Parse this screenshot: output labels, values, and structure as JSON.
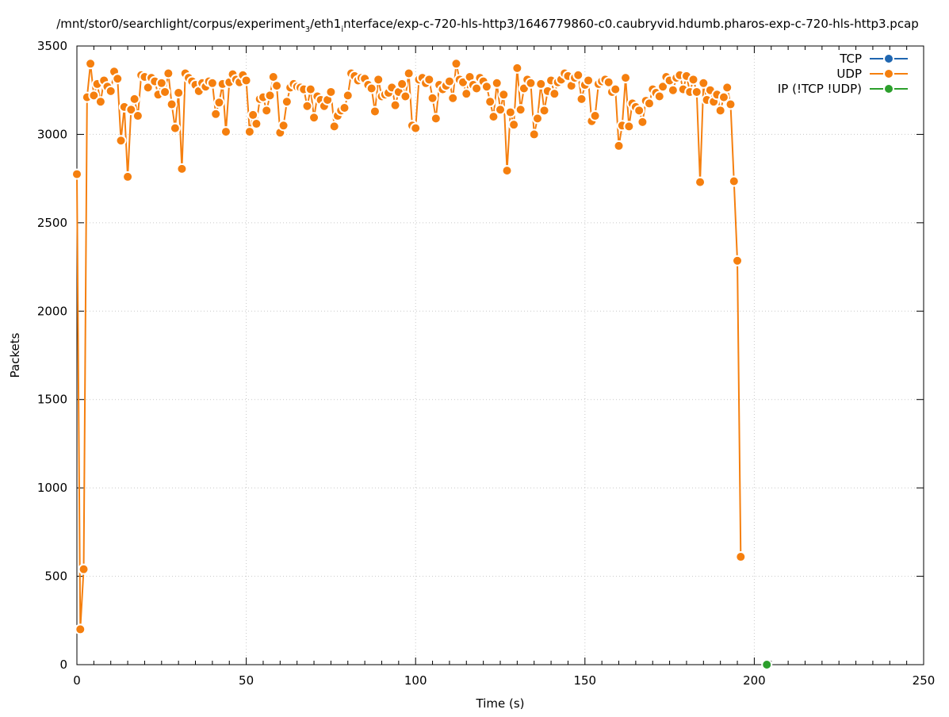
{
  "chart_data": {
    "type": "line",
    "title_prefix": "/mnt/stor0/searchlight/corpus/experiment",
    "title_sub1": "3",
    "title_mid": "/eth1",
    "title_sub2": "i",
    "title_suffix": "nterface/exp-c-720-hls-http3/1646779860-c0.caubryvid.hdumb.pharos-exp-c-720-hls-http3.pcap",
    "xlabel": "Time (s)",
    "ylabel": "Packets",
    "xlim": [
      0,
      250
    ],
    "ylim": [
      0,
      3500
    ],
    "xticks": [
      0,
      50,
      100,
      150,
      200,
      250
    ],
    "yticks": [
      0,
      500,
      1000,
      1500,
      2000,
      2500,
      3000,
      3500
    ],
    "xminor_step": 5,
    "grid": true,
    "legend_position": "top-right",
    "colors": {
      "TCP": "#1f66b0",
      "UDP": "#f57f0e",
      "IP": "#2c9f2c"
    },
    "series": [
      {
        "name": "TCP",
        "color": "#1f66b0",
        "points": []
      },
      {
        "name": "UDP",
        "color": "#f57f0e",
        "points": [
          [
            0,
            2775
          ],
          [
            1,
            200
          ],
          [
            2,
            540
          ],
          [
            3,
            3210
          ],
          [
            4,
            3400
          ],
          [
            5,
            3220
          ],
          [
            6,
            3285
          ],
          [
            7,
            3185
          ],
          [
            8,
            3305
          ],
          [
            9,
            3270
          ],
          [
            10,
            3245
          ],
          [
            11,
            3355
          ],
          [
            12,
            3315
          ],
          [
            13,
            2965
          ],
          [
            14,
            3155
          ],
          [
            15,
            2760
          ],
          [
            16,
            3140
          ],
          [
            17,
            3200
          ],
          [
            18,
            3105
          ],
          [
            19,
            3335
          ],
          [
            20,
            3325
          ],
          [
            21,
            3265
          ],
          [
            22,
            3320
          ],
          [
            23,
            3300
          ],
          [
            24,
            3225
          ],
          [
            25,
            3290
          ],
          [
            26,
            3240
          ],
          [
            27,
            3345
          ],
          [
            28,
            3170
          ],
          [
            29,
            3035
          ],
          [
            30,
            3235
          ],
          [
            31,
            2805
          ],
          [
            32,
            3345
          ],
          [
            33,
            3320
          ],
          [
            34,
            3300
          ],
          [
            35,
            3280
          ],
          [
            36,
            3245
          ],
          [
            37,
            3290
          ],
          [
            38,
            3270
          ],
          [
            39,
            3300
          ],
          [
            40,
            3290
          ],
          [
            41,
            3115
          ],
          [
            42,
            3180
          ],
          [
            43,
            3285
          ],
          [
            44,
            3015
          ],
          [
            45,
            3295
          ],
          [
            46,
            3340
          ],
          [
            47,
            3310
          ],
          [
            48,
            3295
          ],
          [
            49,
            3335
          ],
          [
            50,
            3305
          ],
          [
            51,
            3015
          ],
          [
            52,
            3110
          ],
          [
            53,
            3060
          ],
          [
            54,
            3200
          ],
          [
            55,
            3210
          ],
          [
            56,
            3135
          ],
          [
            57,
            3220
          ],
          [
            58,
            3325
          ],
          [
            59,
            3275
          ],
          [
            60,
            3010
          ],
          [
            61,
            3050
          ],
          [
            62,
            3185
          ],
          [
            63,
            3265
          ],
          [
            64,
            3285
          ],
          [
            65,
            3270
          ],
          [
            66,
            3265
          ],
          [
            67,
            3255
          ],
          [
            68,
            3160
          ],
          [
            69,
            3255
          ],
          [
            70,
            3095
          ],
          [
            71,
            3215
          ],
          [
            72,
            3195
          ],
          [
            73,
            3160
          ],
          [
            74,
            3195
          ],
          [
            75,
            3240
          ],
          [
            76,
            3045
          ],
          [
            77,
            3105
          ],
          [
            78,
            3135
          ],
          [
            79,
            3150
          ],
          [
            80,
            3220
          ],
          [
            81,
            3345
          ],
          [
            82,
            3330
          ],
          [
            83,
            3305
          ],
          [
            84,
            3320
          ],
          [
            85,
            3315
          ],
          [
            86,
            3280
          ],
          [
            87,
            3260
          ],
          [
            88,
            3130
          ],
          [
            89,
            3310
          ],
          [
            90,
            3215
          ],
          [
            91,
            3225
          ],
          [
            92,
            3235
          ],
          [
            93,
            3265
          ],
          [
            94,
            3165
          ],
          [
            95,
            3240
          ],
          [
            96,
            3285
          ],
          [
            97,
            3215
          ],
          [
            98,
            3345
          ],
          [
            99,
            3050
          ],
          [
            100,
            3035
          ],
          [
            101,
            3310
          ],
          [
            102,
            3320
          ],
          [
            103,
            3290
          ],
          [
            104,
            3310
          ],
          [
            105,
            3205
          ],
          [
            106,
            3090
          ],
          [
            107,
            3280
          ],
          [
            108,
            3255
          ],
          [
            109,
            3275
          ],
          [
            110,
            3300
          ],
          [
            111,
            3205
          ],
          [
            112,
            3400
          ],
          [
            113,
            3310
          ],
          [
            114,
            3295
          ],
          [
            115,
            3230
          ],
          [
            116,
            3325
          ],
          [
            117,
            3280
          ],
          [
            118,
            3260
          ],
          [
            119,
            3320
          ],
          [
            120,
            3300
          ],
          [
            121,
            3270
          ],
          [
            122,
            3185
          ],
          [
            123,
            3100
          ],
          [
            124,
            3290
          ],
          [
            125,
            3140
          ],
          [
            126,
            3225
          ],
          [
            127,
            2795
          ],
          [
            128,
            3125
          ],
          [
            129,
            3055
          ],
          [
            130,
            3375
          ],
          [
            131,
            3140
          ],
          [
            132,
            3260
          ],
          [
            133,
            3310
          ],
          [
            134,
            3290
          ],
          [
            135,
            3000
          ],
          [
            136,
            3090
          ],
          [
            137,
            3285
          ],
          [
            138,
            3135
          ],
          [
            139,
            3245
          ],
          [
            140,
            3305
          ],
          [
            141,
            3230
          ],
          [
            142,
            3295
          ],
          [
            143,
            3310
          ],
          [
            144,
            3345
          ],
          [
            145,
            3330
          ],
          [
            146,
            3275
          ],
          [
            147,
            3320
          ],
          [
            148,
            3335
          ],
          [
            149,
            3200
          ],
          [
            150,
            3280
          ],
          [
            151,
            3305
          ],
          [
            152,
            3075
          ],
          [
            153,
            3105
          ],
          [
            154,
            3285
          ],
          [
            155,
            3300
          ],
          [
            156,
            3310
          ],
          [
            157,
            3295
          ],
          [
            158,
            3240
          ],
          [
            159,
            3255
          ],
          [
            160,
            2935
          ],
          [
            161,
            3050
          ],
          [
            162,
            3320
          ],
          [
            163,
            3045
          ],
          [
            164,
            3175
          ],
          [
            165,
            3155
          ],
          [
            166,
            3135
          ],
          [
            167,
            3070
          ],
          [
            168,
            3190
          ],
          [
            169,
            3175
          ],
          [
            170,
            3255
          ],
          [
            171,
            3235
          ],
          [
            172,
            3215
          ],
          [
            173,
            3270
          ],
          [
            174,
            3325
          ],
          [
            175,
            3305
          ],
          [
            176,
            3250
          ],
          [
            177,
            3320
          ],
          [
            178,
            3335
          ],
          [
            179,
            3255
          ],
          [
            180,
            3330
          ],
          [
            181,
            3240
          ],
          [
            182,
            3310
          ],
          [
            183,
            3240
          ],
          [
            184,
            2730
          ],
          [
            185,
            3290
          ],
          [
            186,
            3195
          ],
          [
            187,
            3250
          ],
          [
            188,
            3185
          ],
          [
            189,
            3225
          ],
          [
            190,
            3135
          ],
          [
            191,
            3210
          ],
          [
            192,
            3265
          ],
          [
            193,
            3170
          ],
          [
            194,
            2735
          ],
          [
            195,
            2285
          ],
          [
            196,
            610
          ]
        ]
      },
      {
        "name": "IP (!TCP  !UDP)",
        "color": "#2c9f2c",
        "points": [
          [
            203.7,
            0
          ]
        ]
      }
    ]
  }
}
